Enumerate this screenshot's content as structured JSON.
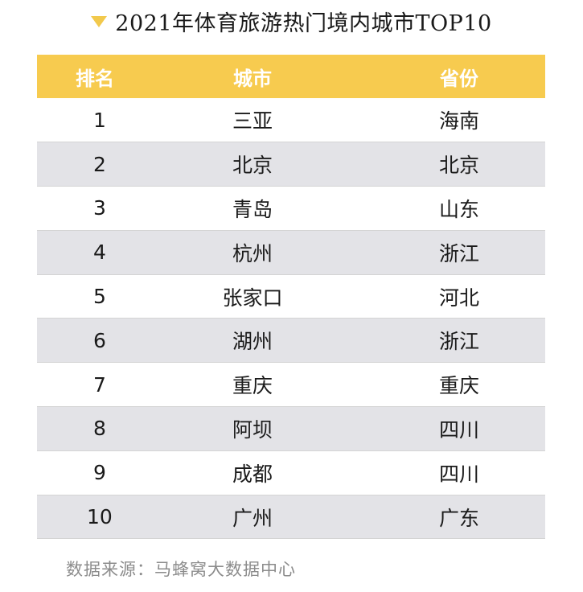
{
  "title": "2021年体育旅游热门境内城市TOP10",
  "colors": {
    "accent": "#f7cb4f",
    "row_alt": "#e3e3e7",
    "source_text": "#8c8c8c"
  },
  "table": {
    "headers": {
      "rank": "排名",
      "city": "城市",
      "province": "省份"
    },
    "rows": [
      {
        "rank": "1",
        "city": "三亚",
        "province": "海南"
      },
      {
        "rank": "2",
        "city": "北京",
        "province": "北京"
      },
      {
        "rank": "3",
        "city": "青岛",
        "province": "山东"
      },
      {
        "rank": "4",
        "city": "杭州",
        "province": "浙江"
      },
      {
        "rank": "5",
        "city": "张家口",
        "province": "河北"
      },
      {
        "rank": "6",
        "city": "湖州",
        "province": "浙江"
      },
      {
        "rank": "7",
        "city": "重庆",
        "province": "重庆"
      },
      {
        "rank": "8",
        "city": "阿坝",
        "province": "四川"
      },
      {
        "rank": "9",
        "city": "成都",
        "province": "四川"
      },
      {
        "rank": "10",
        "city": "广州",
        "province": "广东"
      }
    ]
  },
  "source": "数据来源：马蜂窝大数据中心"
}
